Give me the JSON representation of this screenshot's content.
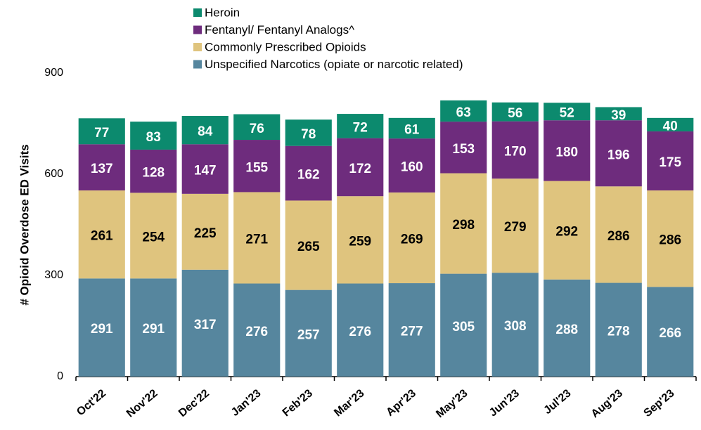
{
  "chart_data": {
    "type": "stacked_bar",
    "y_label": "# Opioid Overdose ED Visits",
    "categories": [
      "Oct'22",
      "Nov'22",
      "Dec'22",
      "Jan'23",
      "Feb'23",
      "Mar'23",
      "Apr'23",
      "May'23",
      "Jun'23",
      "Jul'23",
      "Aug'23",
      "Sep'23"
    ],
    "series": [
      {
        "name": "Unspecified Narcotics (opiate or narcotic related)",
        "color": "#56869e",
        "values": [
          291,
          291,
          317,
          276,
          257,
          276,
          277,
          305,
          308,
          288,
          278,
          266
        ]
      },
      {
        "name": "Commonly Prescribed Opioids",
        "color": "#dfc47e",
        "values": [
          261,
          254,
          225,
          271,
          265,
          259,
          269,
          298,
          279,
          292,
          286,
          286
        ]
      },
      {
        "name": "Fentanyl/ Fentanyl Analogs^",
        "color": "#6e2c7d",
        "values": [
          137,
          128,
          147,
          155,
          162,
          172,
          160,
          153,
          170,
          180,
          196,
          175
        ]
      },
      {
        "name": "Heroin",
        "color": "#0c8a6e",
        "values": [
          77,
          83,
          84,
          76,
          78,
          72,
          61,
          63,
          56,
          52,
          39,
          40
        ]
      }
    ],
    "ylim": [
      0,
      900
    ],
    "yticks": [
      0,
      300,
      600,
      900
    ],
    "grid": false
  }
}
